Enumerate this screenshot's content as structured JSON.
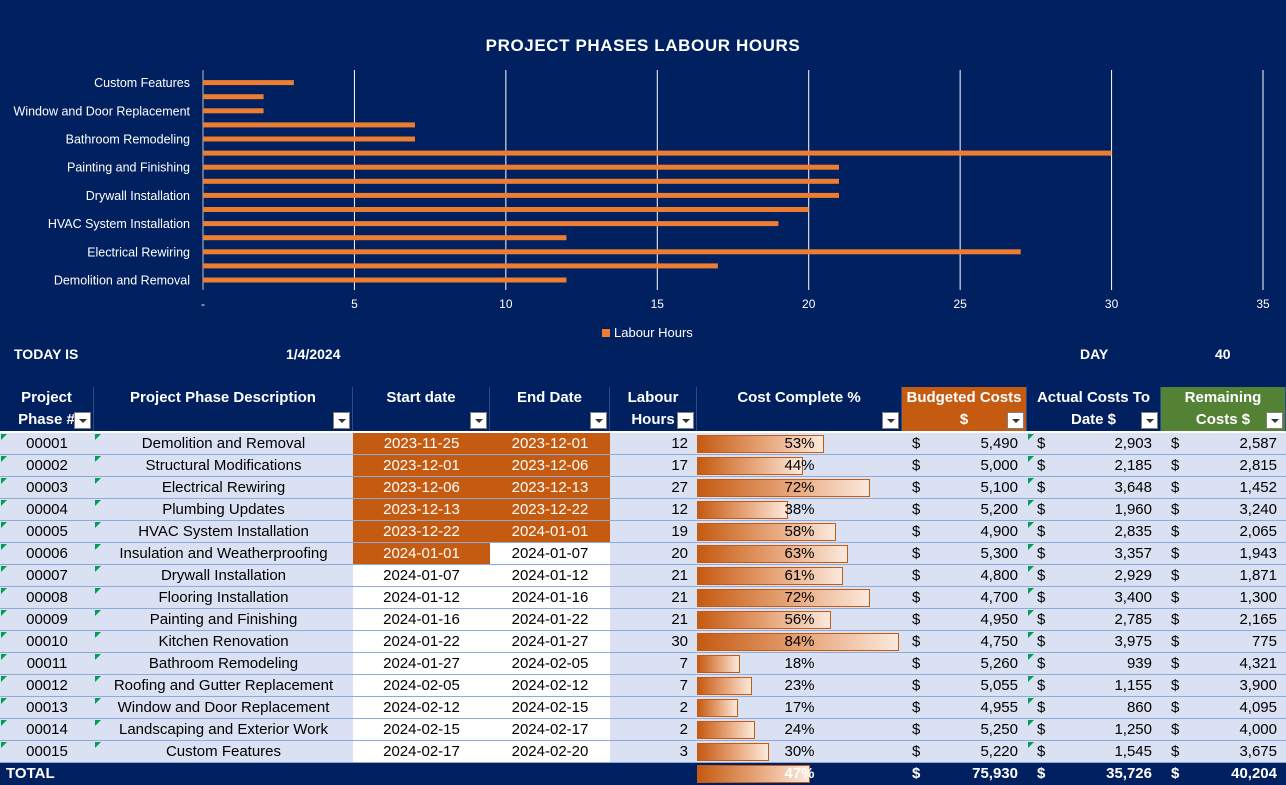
{
  "chart_data": {
    "type": "bar",
    "orientation": "horizontal",
    "title": "PROJECT PHASES LABOUR HOURS",
    "categories": [
      "Demolition and Removal",
      "Structural Modifications",
      "Electrical Rewiring",
      "Plumbing Updates",
      "HVAC System Installation",
      "Insulation and Weatherproofing",
      "Drywall Installation",
      "Flooring Installation",
      "Painting and Finishing",
      "Kitchen Renovation",
      "Bathroom Remodeling",
      "Roofing and Gutter Replacement",
      "Window and Door Replacement",
      "Landscaping and Exterior Work",
      "Custom Features"
    ],
    "visible_category_labels": [
      "Custom Features",
      "Window and Door Replacement",
      "Bathroom Remodeling",
      "Painting and Finishing",
      "Drywall Installation",
      "HVAC System Installation",
      "Electrical Rewiring",
      "Demolition and Removal"
    ],
    "series": [
      {
        "name": "Labour Hours",
        "values": [
          12,
          17,
          27,
          12,
          19,
          20,
          21,
          21,
          21,
          30,
          7,
          7,
          2,
          2,
          3
        ]
      }
    ],
    "x_ticks": [
      "-",
      "5",
      "10",
      "15",
      "20",
      "25",
      "30",
      "35"
    ],
    "xlim": [
      0,
      35
    ],
    "grid": true,
    "legend": "bottom",
    "bar_color": "#ED7D31",
    "background": "#002060"
  },
  "header_info": {
    "today_label": "TODAY IS",
    "today_value": "1/4/2024",
    "day_label": "DAY",
    "day_value": "40"
  },
  "table": {
    "columns": [
      "Project Phase #",
      "Project Phase Description",
      "Start date",
      "End Date",
      "Labour Hours",
      "Cost Complete %",
      "Budgeted Costs $",
      "Actual Costs To Date $",
      "Remaining Costs $"
    ],
    "column_lines": [
      [
        "Project",
        "Phase #"
      ],
      [
        "Project Phase Description"
      ],
      [
        "Start date"
      ],
      [
        "End Date"
      ],
      [
        "Labour",
        "Hours"
      ],
      [
        "Cost Complete %"
      ],
      [
        "Budgeted Costs",
        "$"
      ],
      [
        "Actual Costs To",
        "Date $"
      ],
      [
        "Remaining",
        "Costs $"
      ]
    ],
    "currency": "$",
    "rows": [
      {
        "id": "00001",
        "desc": "Demolition and Removal",
        "start": "2023-11-25",
        "end": "2023-12-01",
        "hours": "12",
        "pct": "53%",
        "pct_value": 53,
        "budget": "5,490",
        "actual": "2,903",
        "remaining": "2,587",
        "start_hl": true,
        "end_hl": true
      },
      {
        "id": "00002",
        "desc": "Structural Modifications",
        "start": "2023-12-01",
        "end": "2023-12-06",
        "hours": "17",
        "pct": "44%",
        "pct_value": 44,
        "budget": "5,000",
        "actual": "2,185",
        "remaining": "2,815",
        "start_hl": true,
        "end_hl": true
      },
      {
        "id": "00003",
        "desc": "Electrical Rewiring",
        "start": "2023-12-06",
        "end": "2023-12-13",
        "hours": "27",
        "pct": "72%",
        "pct_value": 72,
        "budget": "5,100",
        "actual": "3,648",
        "remaining": "1,452",
        "start_hl": true,
        "end_hl": true
      },
      {
        "id": "00004",
        "desc": "Plumbing Updates",
        "start": "2023-12-13",
        "end": "2023-12-22",
        "hours": "12",
        "pct": "38%",
        "pct_value": 38,
        "budget": "5,200",
        "actual": "1,960",
        "remaining": "3,240",
        "start_hl": true,
        "end_hl": true
      },
      {
        "id": "00005",
        "desc": "HVAC System Installation",
        "start": "2023-12-22",
        "end": "2024-01-01",
        "hours": "19",
        "pct": "58%",
        "pct_value": 58,
        "budget": "4,900",
        "actual": "2,835",
        "remaining": "2,065",
        "start_hl": true,
        "end_hl": true
      },
      {
        "id": "00006",
        "desc": "Insulation and Weatherproofing",
        "start": "2024-01-01",
        "end": "2024-01-07",
        "hours": "20",
        "pct": "63%",
        "pct_value": 63,
        "budget": "5,300",
        "actual": "3,357",
        "remaining": "1,943",
        "start_hl": true,
        "end_hl": false
      },
      {
        "id": "00007",
        "desc": "Drywall Installation",
        "start": "2024-01-07",
        "end": "2024-01-12",
        "hours": "21",
        "pct": "61%",
        "pct_value": 61,
        "budget": "4,800",
        "actual": "2,929",
        "remaining": "1,871",
        "start_hl": false,
        "end_hl": false
      },
      {
        "id": "00008",
        "desc": "Flooring Installation",
        "start": "2024-01-12",
        "end": "2024-01-16",
        "hours": "21",
        "pct": "72%",
        "pct_value": 72,
        "budget": "4,700",
        "actual": "3,400",
        "remaining": "1,300",
        "start_hl": false,
        "end_hl": false
      },
      {
        "id": "00009",
        "desc": "Painting and Finishing",
        "start": "2024-01-16",
        "end": "2024-01-22",
        "hours": "21",
        "pct": "56%",
        "pct_value": 56,
        "budget": "4,950",
        "actual": "2,785",
        "remaining": "2,165",
        "start_hl": false,
        "end_hl": false
      },
      {
        "id": "00010",
        "desc": "Kitchen Renovation",
        "start": "2024-01-22",
        "end": "2024-01-27",
        "hours": "30",
        "pct": "84%",
        "pct_value": 84,
        "budget": "4,750",
        "actual": "3,975",
        "remaining": "775",
        "start_hl": false,
        "end_hl": false
      },
      {
        "id": "00011",
        "desc": "Bathroom Remodeling",
        "start": "2024-01-27",
        "end": "2024-02-05",
        "hours": "7",
        "pct": "18%",
        "pct_value": 18,
        "budget": "5,260",
        "actual": "939",
        "remaining": "4,321",
        "start_hl": false,
        "end_hl": false
      },
      {
        "id": "00012",
        "desc": "Roofing and Gutter Replacement",
        "start": "2024-02-05",
        "end": "2024-02-12",
        "hours": "7",
        "pct": "23%",
        "pct_value": 23,
        "budget": "5,055",
        "actual": "1,155",
        "remaining": "3,900",
        "start_hl": false,
        "end_hl": false
      },
      {
        "id": "00013",
        "desc": "Window and Door Replacement",
        "start": "2024-02-12",
        "end": "2024-02-15",
        "hours": "2",
        "pct": "17%",
        "pct_value": 17,
        "budget": "4,955",
        "actual": "860",
        "remaining": "4,095",
        "start_hl": false,
        "end_hl": false
      },
      {
        "id": "00014",
        "desc": "Landscaping and Exterior Work",
        "start": "2024-02-15",
        "end": "2024-02-17",
        "hours": "2",
        "pct": "24%",
        "pct_value": 24,
        "budget": "5,250",
        "actual": "1,250",
        "remaining": "4,000",
        "start_hl": false,
        "end_hl": false
      },
      {
        "id": "00015",
        "desc": "Custom Features",
        "start": "2024-02-17",
        "end": "2024-02-20",
        "hours": "3",
        "pct": "30%",
        "pct_value": 30,
        "budget": "5,220",
        "actual": "1,545",
        "remaining": "3,675",
        "start_hl": false,
        "end_hl": false
      }
    ],
    "total": {
      "label": "TOTAL",
      "pct": "47%",
      "pct_value": 47,
      "budget": "75,930",
      "actual": "35,726",
      "remaining": "40,204"
    }
  }
}
